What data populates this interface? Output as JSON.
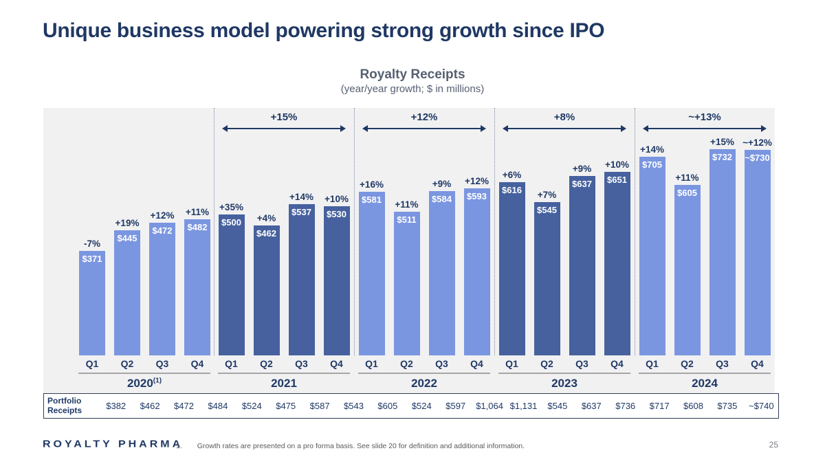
{
  "slide": {
    "title": "Unique business model powering strong growth since IPO",
    "logo_text": "ROYALTY PHARMA",
    "footnote_number": "1.",
    "footnote_text": "Growth rates are presented on a pro forma basis. See slide 20 for definition and additional information.",
    "page_number": "25"
  },
  "chart": {
    "title": "Royalty Receipts",
    "subtitle": "(year/year growth; $ in millions)"
  },
  "colors": {
    "light_bar": "#7B96E0",
    "dark_bar": "#46619E",
    "navy_text": "#1F3864",
    "panel_background": "#F1F1F2"
  },
  "chart_data": {
    "type": "bar",
    "title": "Royalty Receipts",
    "subtitle": "(year/year growth; $ in millions)",
    "ylim": [
      0,
      732
    ],
    "grid": false,
    "legend": false,
    "groups": [
      {
        "year": "2020",
        "year_superscript": "(1)",
        "shade": "light",
        "arrow_label": null,
        "bars": [
          {
            "quarter": "Q1",
            "growth": "-7%",
            "value": 371,
            "value_label": "$371"
          },
          {
            "quarter": "Q2",
            "growth": "+19%",
            "value": 445,
            "value_label": "$445"
          },
          {
            "quarter": "Q3",
            "growth": "+12%",
            "value": 472,
            "value_label": "$472"
          },
          {
            "quarter": "Q4",
            "growth": "+11%",
            "value": 482,
            "value_label": "$482"
          }
        ]
      },
      {
        "year": "2021",
        "year_superscript": "",
        "shade": "dark",
        "arrow_label": "+15%",
        "bars": [
          {
            "quarter": "Q1",
            "growth": "+35%",
            "value": 500,
            "value_label": "$500"
          },
          {
            "quarter": "Q2",
            "growth": "+4%",
            "value": 462,
            "value_label": "$462"
          },
          {
            "quarter": "Q3",
            "growth": "+14%",
            "value": 537,
            "value_label": "$537"
          },
          {
            "quarter": "Q4",
            "growth": "+10%",
            "value": 530,
            "value_label": "$530"
          }
        ]
      },
      {
        "year": "2022",
        "year_superscript": "",
        "shade": "light",
        "arrow_label": "+12%",
        "bars": [
          {
            "quarter": "Q1",
            "growth": "+16%",
            "value": 581,
            "value_label": "$581"
          },
          {
            "quarter": "Q2",
            "growth": "+11%",
            "value": 511,
            "value_label": "$511"
          },
          {
            "quarter": "Q3",
            "growth": "+9%",
            "value": 584,
            "value_label": "$584"
          },
          {
            "quarter": "Q4",
            "growth": "+12%",
            "value": 593,
            "value_label": "$593"
          }
        ]
      },
      {
        "year": "2023",
        "year_superscript": "",
        "shade": "dark",
        "arrow_label": "+8%",
        "bars": [
          {
            "quarter": "Q1",
            "growth": "+6%",
            "value": 616,
            "value_label": "$616"
          },
          {
            "quarter": "Q2",
            "growth": "+7%",
            "value": 545,
            "value_label": "$545"
          },
          {
            "quarter": "Q3",
            "growth": "+9%",
            "value": 637,
            "value_label": "$637"
          },
          {
            "quarter": "Q4",
            "growth": "+10%",
            "value": 651,
            "value_label": "$651"
          }
        ]
      },
      {
        "year": "2024",
        "year_superscript": "",
        "shade": "light",
        "arrow_label": "~+13%",
        "bars": [
          {
            "quarter": "Q1",
            "growth": "+14%",
            "value": 705,
            "value_label": "$705"
          },
          {
            "quarter": "Q2",
            "growth": "+11%",
            "value": 605,
            "value_label": "$605"
          },
          {
            "quarter": "Q3",
            "growth": "+15%",
            "value": 732,
            "value_label": "$732"
          },
          {
            "quarter": "Q4",
            "growth": "~+12%",
            "value": 730,
            "value_label": "~$730"
          }
        ]
      }
    ],
    "portfolio_receipts": {
      "label_line1": "Portfolio",
      "label_line2": "Receipts",
      "values": [
        "$382",
        "$462",
        "$472",
        "$484",
        "$524",
        "$475",
        "$587",
        "$543",
        "$605",
        "$524",
        "$597",
        "$1,064",
        "$1,131",
        "$545",
        "$637",
        "$736",
        "$717",
        "$608",
        "$735",
        "~$740"
      ]
    }
  }
}
